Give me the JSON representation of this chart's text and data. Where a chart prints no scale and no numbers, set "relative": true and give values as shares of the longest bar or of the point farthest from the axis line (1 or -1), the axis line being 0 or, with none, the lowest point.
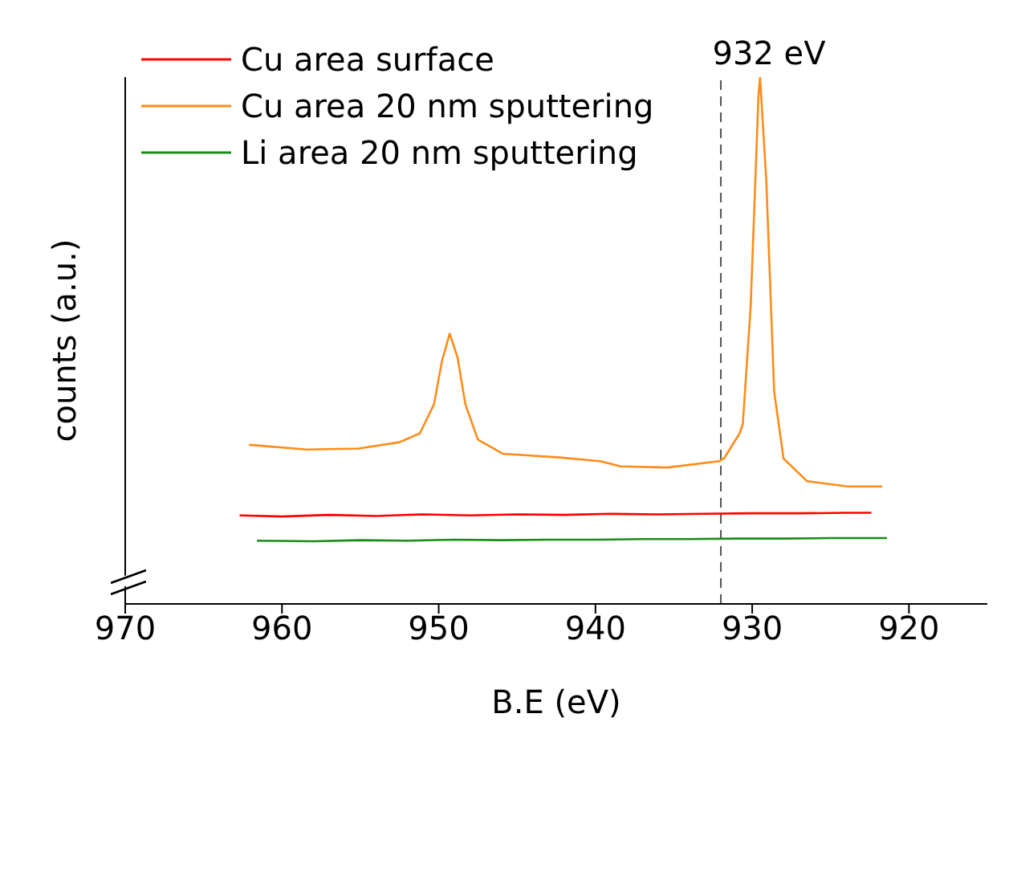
{
  "chart_data": {
    "type": "line",
    "relative": true,
    "xlabel": "B.E (eV)",
    "ylabel": "counts (a.u.)",
    "xlim": [
      970,
      915
    ],
    "xticks": [
      970,
      960,
      950,
      940,
      930,
      920
    ],
    "legend": "top left",
    "marker": "none",
    "line_style": "solid",
    "grid": false,
    "ref_lines": [
      {
        "axis": "x",
        "value": 932,
        "label": "932 eV",
        "color": "#555555",
        "line_style": "dashed"
      }
    ],
    "series": [
      {
        "name": "Cu area surface",
        "color": "#ff0000",
        "x": [
          962.7,
          960,
          957,
          954,
          951,
          948,
          945,
          942,
          939,
          936,
          933,
          930,
          927,
          924,
          922.4
        ],
        "values": [
          0.168,
          0.166,
          0.169,
          0.167,
          0.17,
          0.168,
          0.17,
          0.169,
          0.171,
          0.17,
          0.171,
          0.172,
          0.172,
          0.173,
          0.173
        ]
      },
      {
        "name": "Cu area 20 nm sputtering",
        "color": "#ff8c1a",
        "x": [
          962.1,
          958.4,
          955.1,
          952.5,
          951.2,
          950.3,
          949.8,
          949.3,
          948.8,
          948.3,
          947.5,
          945.9,
          942.3,
          939.7,
          938.4,
          935.4,
          932.1,
          931.8,
          930.8,
          930.6,
          930.1,
          929.6,
          929.5,
          929.1,
          928.6,
          928.0,
          926.5,
          923.9,
          921.7
        ],
        "values": [
          0.302,
          0.293,
          0.295,
          0.307,
          0.324,
          0.379,
          0.46,
          0.513,
          0.468,
          0.379,
          0.312,
          0.285,
          0.278,
          0.271,
          0.261,
          0.259,
          0.271,
          0.276,
          0.324,
          0.341,
          0.564,
          0.964,
          1,
          0.803,
          0.403,
          0.276,
          0.233,
          0.223,
          0.223
        ]
      },
      {
        "name": "Li area 20 nm sputtering",
        "color": "#1a8c1a",
        "x": [
          961.6,
          958,
          955,
          952,
          949,
          946,
          943,
          940,
          937,
          934,
          931,
          928,
          925,
          921.4
        ],
        "values": [
          0.12,
          0.119,
          0.121,
          0.12,
          0.122,
          0.121,
          0.122,
          0.122,
          0.123,
          0.123,
          0.124,
          0.124,
          0.125,
          0.125
        ]
      }
    ]
  }
}
